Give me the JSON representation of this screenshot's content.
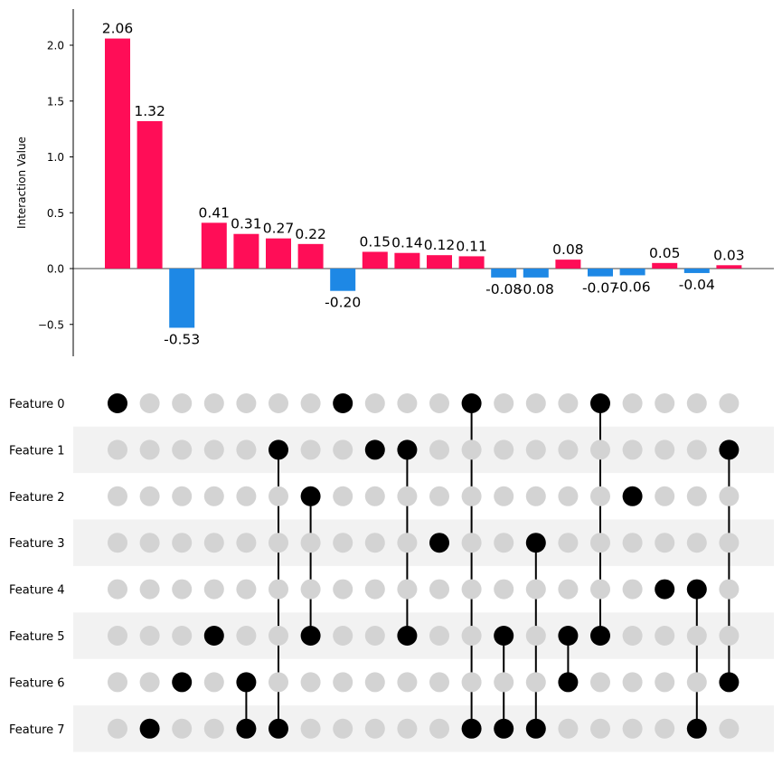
{
  "chart_data": {
    "type": "bar",
    "ylabel": "Interaction Value",
    "ylim": [
      -0.8,
      2.32
    ],
    "yticks": [
      -0.5,
      0.0,
      0.5,
      1.0,
      1.5,
      2.0
    ],
    "ytick_labels": [
      "−0.5",
      "0.0",
      "0.5",
      "1.0",
      "1.5",
      "2.0"
    ],
    "values": [
      2.06,
      1.32,
      -0.53,
      0.41,
      0.31,
      0.27,
      0.22,
      -0.2,
      0.15,
      0.14,
      0.12,
      0.11,
      -0.08,
      -0.08,
      0.08,
      -0.07,
      -0.06,
      0.05,
      -0.04,
      0.03
    ],
    "value_labels": [
      "2.06",
      "1.32",
      "-0.53",
      "0.41",
      "0.31",
      "0.27",
      "0.22",
      "-0.20",
      "0.15",
      "0.14",
      "0.12",
      "0.11",
      "-0.08",
      "-0.08",
      "0.08",
      "-0.07",
      "-0.06",
      "0.05",
      "-0.04",
      "0.03"
    ],
    "colors": {
      "positive": "#ff0d57",
      "negative": "#1e88e5",
      "active_dot": "#000000",
      "inactive_dot": "#d3d3d3",
      "band": "#f2f2f2"
    },
    "features": [
      "Feature 0",
      "Feature 1",
      "Feature 2",
      "Feature 3",
      "Feature 4",
      "Feature 5",
      "Feature 6",
      "Feature 7"
    ],
    "combinations": [
      [
        0
      ],
      [
        7
      ],
      [
        6
      ],
      [
        5
      ],
      [
        6,
        7
      ],
      [
        1,
        7
      ],
      [
        2,
        5
      ],
      [
        0
      ],
      [
        1
      ],
      [
        1,
        5
      ],
      [
        3
      ],
      [
        0,
        7
      ],
      [
        5,
        7
      ],
      [
        3,
        7
      ],
      [
        5,
        6
      ],
      [
        0,
        5
      ],
      [
        2
      ],
      [
        4
      ],
      [
        4,
        7
      ],
      [
        1,
        6
      ]
    ]
  }
}
